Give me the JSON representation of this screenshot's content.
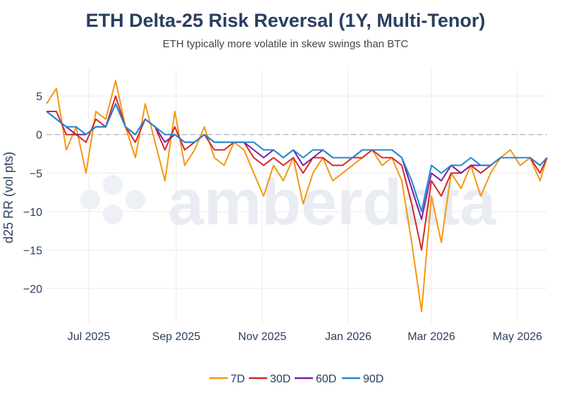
{
  "chart_data": {
    "type": "line",
    "title": "ETH Delta-25 Risk Reversal (1Y, Multi-Tenor)",
    "subtitle": "ETH typically more volatile in skew swings than BTC",
    "ylabel": "d25 RR (vol pts)",
    "xlabel": "",
    "xlim": [
      "2025-06-01",
      "2026-05-22"
    ],
    "ylim": [
      -24.5,
      8.5
    ],
    "x_ticks": [
      "Jul 2025",
      "Sep 2025",
      "Nov 2025",
      "Jan 2026",
      "Mar 2026",
      "May 2026"
    ],
    "x_tick_dates": [
      "2025-07-01",
      "2025-09-01",
      "2025-11-01",
      "2026-01-01",
      "2026-03-01",
      "2026-05-01"
    ],
    "y_ticks": [
      "5",
      "0",
      "−5",
      "−10",
      "−15",
      "−20"
    ],
    "y_tick_values": [
      5,
      0,
      -5,
      -10,
      -15,
      -20
    ],
    "reference_line": 0,
    "grid": true,
    "legend_position": "bottom",
    "watermark": "amberdata",
    "x": [
      "2025-06-01",
      "2025-06-08",
      "2025-06-15",
      "2025-06-22",
      "2025-06-29",
      "2025-07-06",
      "2025-07-13",
      "2025-07-20",
      "2025-07-27",
      "2025-08-03",
      "2025-08-10",
      "2025-08-17",
      "2025-08-24",
      "2025-08-31",
      "2025-09-07",
      "2025-09-14",
      "2025-09-21",
      "2025-09-28",
      "2025-10-05",
      "2025-10-12",
      "2025-10-19",
      "2025-10-26",
      "2025-11-02",
      "2025-11-09",
      "2025-11-16",
      "2025-11-23",
      "2025-11-30",
      "2025-12-07",
      "2025-12-14",
      "2025-12-21",
      "2025-12-28",
      "2026-01-04",
      "2026-01-11",
      "2026-01-18",
      "2026-01-25",
      "2026-02-01",
      "2026-02-08",
      "2026-02-15",
      "2026-02-22",
      "2026-03-01",
      "2026-03-08",
      "2026-03-15",
      "2026-03-22",
      "2026-03-29",
      "2026-04-05",
      "2026-04-12",
      "2026-04-19",
      "2026-04-26",
      "2026-05-03",
      "2026-05-10",
      "2026-05-17",
      "2026-05-22"
    ],
    "series": [
      {
        "name": "7D",
        "color": "#f5970f",
        "values": [
          4,
          6,
          -2,
          1,
          -5,
          3,
          2,
          7,
          1,
          -3,
          4,
          -1,
          -6,
          3,
          -4,
          -2,
          1,
          -3,
          -4,
          -1,
          -2,
          -5,
          -8,
          -4,
          -6,
          -3,
          -9,
          -5,
          -3,
          -6,
          -5,
          -4,
          -3,
          -2,
          -4,
          -3,
          -6,
          -14,
          -23,
          -8,
          -14,
          -5,
          -7,
          -4,
          -8,
          -5,
          -3,
          -2,
          -4,
          -3,
          -6,
          -3
        ]
      },
      {
        "name": "30D",
        "color": "#d62728",
        "values": [
          3,
          3,
          0,
          0,
          -1,
          2,
          1,
          5,
          1,
          -1,
          2,
          1,
          -2,
          1,
          -2,
          -1,
          0,
          -2,
          -2,
          -1,
          -1,
          -3,
          -4,
          -3,
          -4,
          -3,
          -5,
          -3,
          -3,
          -4,
          -4,
          -3,
          -3,
          -2,
          -3,
          -3,
          -4,
          -9,
          -15,
          -6,
          -8,
          -5,
          -5,
          -4,
          -5,
          -4,
          -3,
          -3,
          -3,
          -3,
          -5,
          -3
        ]
      },
      {
        "name": "60D",
        "color": "#7b1fa2",
        "values": [
          3,
          2,
          1,
          0,
          0,
          1,
          1,
          4,
          1,
          0,
          2,
          1,
          -1,
          0,
          -1,
          -1,
          0,
          -1,
          -1,
          -1,
          -1,
          -2,
          -3,
          -2,
          -3,
          -2,
          -4,
          -3,
          -2,
          -3,
          -3,
          -3,
          -2,
          -2,
          -2,
          -2,
          -3,
          -7,
          -11,
          -5,
          -6,
          -4,
          -5,
          -4,
          -4,
          -4,
          -3,
          -3,
          -3,
          -3,
          -4,
          -3
        ]
      },
      {
        "name": "90D",
        "color": "#1f88d2",
        "values": [
          3,
          2,
          1,
          1,
          0,
          1,
          1,
          4,
          1,
          0,
          2,
          1,
          0,
          0,
          -1,
          -1,
          0,
          -1,
          -1,
          -1,
          -1,
          -1,
          -2,
          -2,
          -3,
          -2,
          -3,
          -2,
          -2,
          -3,
          -3,
          -3,
          -2,
          -2,
          -2,
          -2,
          -3,
          -6,
          -10,
          -4,
          -5,
          -4,
          -4,
          -3,
          -4,
          -4,
          -3,
          -3,
          -3,
          -3,
          -4,
          -3
        ]
      }
    ]
  }
}
